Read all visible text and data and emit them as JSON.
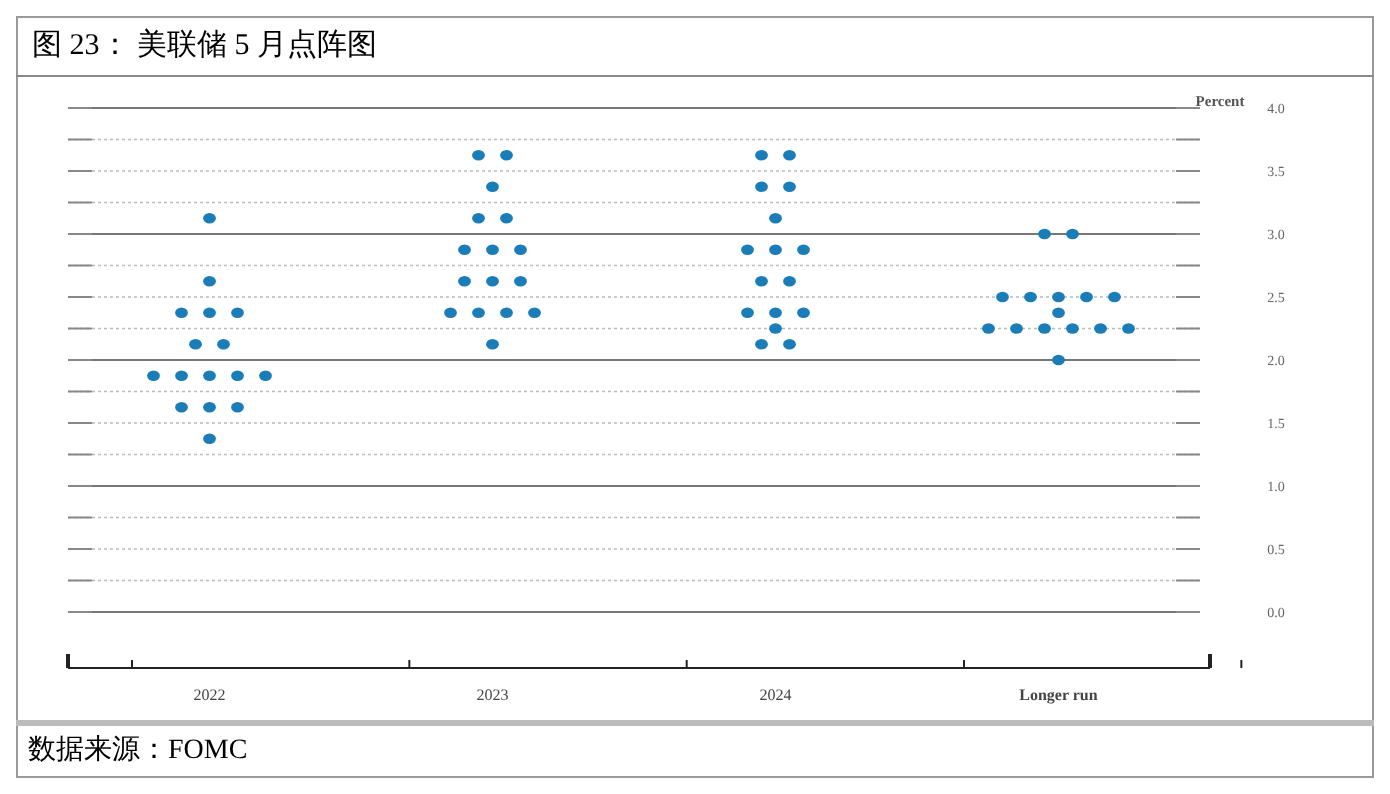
{
  "chart_data": {
    "type": "scatter",
    "title": "图 23：  美联储 5 月点阵图",
    "ylabel": "Percent",
    "annotations": [
      "数据来源：FOMC"
    ],
    "categories": [
      "2022",
      "2023",
      "2024",
      "Longer run"
    ],
    "series": [
      {
        "color": "#1a7db8",
        "values": [
          3.125,
          3.625,
          3.625,
          3.0
        ]
      },
      {
        "color": "#1a7db8",
        "values": [
          2.625,
          3.625,
          3.625,
          3.0
        ]
      },
      {
        "color": "#1a7db8",
        "values": [
          2.375,
          3.375,
          3.375,
          2.5
        ]
      },
      {
        "color": "#1a7db8",
        "values": [
          2.375,
          3.125,
          3.375,
          2.5
        ]
      },
      {
        "color": "#1a7db8",
        "values": [
          2.375,
          3.125,
          3.125,
          2.5
        ]
      },
      {
        "color": "#1a7db8",
        "values": [
          2.125,
          2.875,
          2.875,
          2.5
        ]
      },
      {
        "color": "#1a7db8",
        "values": [
          2.125,
          2.875,
          2.875,
          2.5
        ]
      },
      {
        "color": "#1a7db8",
        "values": [
          1.875,
          2.875,
          2.875,
          2.375
        ]
      },
      {
        "color": "#1a7db8",
        "values": [
          1.875,
          2.625,
          2.625,
          2.25
        ]
      },
      {
        "color": "#1a7db8",
        "values": [
          1.875,
          2.625,
          2.625,
          2.25
        ]
      },
      {
        "color": "#1a7db8",
        "values": [
          1.875,
          2.625,
          2.375,
          2.25
        ]
      },
      {
        "color": "#1a7db8",
        "values": [
          1.875,
          2.375,
          2.375,
          2.25
        ]
      },
      {
        "color": "#1a7db8",
        "values": [
          1.625,
          2.375,
          2.375,
          2.25
        ]
      },
      {
        "color": "#1a7db8",
        "values": [
          1.625,
          2.375,
          2.25,
          2.25
        ]
      },
      {
        "color": "#1a7db8",
        "values": [
          1.625,
          2.375,
          2.125,
          2.0
        ]
      },
      {
        "color": "#1a7db8",
        "values": [
          1.375,
          2.125,
          2.125,
          null
        ]
      }
    ],
    "ylim": [
      0,
      4
    ],
    "yticks": [
      {
        "value": 0,
        "label": "0.0"
      },
      {
        "value": 0.25,
        "label": null
      },
      {
        "value": 0.5,
        "label": "0.5"
      },
      {
        "value": 0.75,
        "label": null
      },
      {
        "value": 1,
        "label": "1.0"
      },
      {
        "value": 1.25,
        "label": null
      },
      {
        "value": 1.5,
        "label": "1.5"
      },
      {
        "value": 1.75,
        "label": null
      },
      {
        "value": 2,
        "label": "2.0"
      },
      {
        "value": 2.25,
        "label": null
      },
      {
        "value": 2.5,
        "label": "2.5"
      },
      {
        "value": 2.75,
        "label": null
      },
      {
        "value": 3,
        "label": "3.0"
      },
      {
        "value": 3.25,
        "label": null
      },
      {
        "value": 3.5,
        "label": "3.5"
      },
      {
        "value": 3.75,
        "label": null
      },
      {
        "value": 4,
        "label": "4.0"
      }
    ],
    "grid": "y",
    "marker": "circle"
  }
}
